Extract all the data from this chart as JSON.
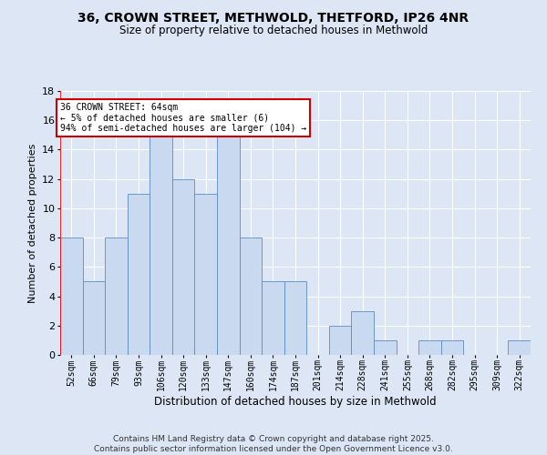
{
  "title": "36, CROWN STREET, METHWOLD, THETFORD, IP26 4NR",
  "subtitle": "Size of property relative to detached houses in Methwold",
  "xlabel": "Distribution of detached houses by size in Methwold",
  "ylabel": "Number of detached properties",
  "categories": [
    "52sqm",
    "66sqm",
    "79sqm",
    "93sqm",
    "106sqm",
    "120sqm",
    "133sqm",
    "147sqm",
    "160sqm",
    "174sqm",
    "187sqm",
    "201sqm",
    "214sqm",
    "228sqm",
    "241sqm",
    "255sqm",
    "268sqm",
    "282sqm",
    "295sqm",
    "309sqm",
    "322sqm"
  ],
  "values": [
    8,
    5,
    8,
    11,
    15,
    12,
    11,
    15,
    8,
    5,
    5,
    0,
    2,
    3,
    1,
    0,
    1,
    1,
    0,
    0,
    1
  ],
  "bar_color": "#c9d9f0",
  "bar_edge_color": "#5b8cc8",
  "ylim": [
    0,
    18
  ],
  "yticks": [
    0,
    2,
    4,
    6,
    8,
    10,
    12,
    14,
    16,
    18
  ],
  "annotation_text": "36 CROWN STREET: 64sqm\n← 5% of detached houses are smaller (6)\n94% of semi-detached houses are larger (104) →",
  "annotation_box_color": "#ffffff",
  "annotation_box_edge": "#cc0000",
  "footer": "Contains HM Land Registry data © Crown copyright and database right 2025.\nContains public sector information licensed under the Open Government Licence v3.0.",
  "background_color": "#dce6f5",
  "plot_background": "#dce6f5",
  "grid_color": "#ffffff"
}
